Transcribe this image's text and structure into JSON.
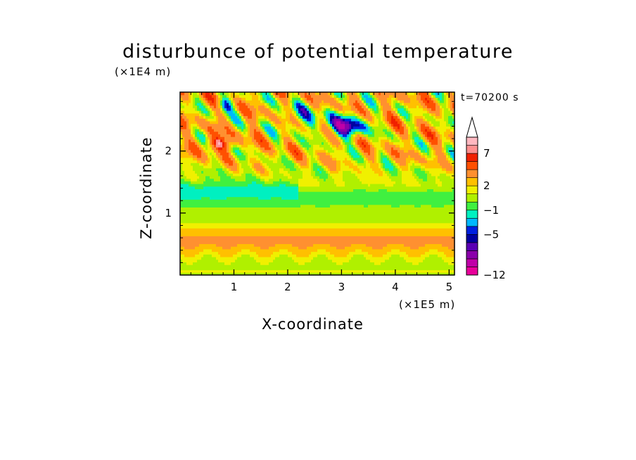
{
  "chart_data": {
    "type": "heatmap",
    "title": "disturbunce of potential temperature",
    "xlabel": "X-coordinate",
    "ylabel": "Z-coordinate",
    "x_multiplier": "(×1E5 m)",
    "y_multiplier": "(×1E4 m)",
    "time_label": "t=70200 s",
    "xlim": [
      0,
      5.1
    ],
    "ylim": [
      0,
      2.95
    ],
    "x_ticks": [
      "1",
      "2",
      "3",
      "4",
      "5"
    ],
    "y_ticks": [
      "1",
      "2"
    ],
    "colorbar": {
      "levels": [
        -12,
        -11,
        -10,
        -9,
        -8,
        -7,
        -6,
        -5,
        -4,
        -3,
        -2,
        -1,
        0,
        1,
        2,
        3,
        4,
        5,
        6,
        7,
        8,
        9,
        10
      ],
      "tick_labels": [
        "-12",
        "-5",
        "-1",
        "2",
        "7"
      ],
      "extend": "max",
      "colors": [
        "#e8009a",
        "#c000a8",
        "#8a00aa",
        "#5a00b4",
        "#0000a0",
        "#0020e0",
        "#00b8ff",
        "#00f0c0",
        "#40f040",
        "#b0f000",
        "#f0f000",
        "#ffc000",
        "#ff9030",
        "#ff5000",
        "#f02000",
        "#ff9090",
        "#ffb8c0"
      ]
    },
    "grid": false
  }
}
